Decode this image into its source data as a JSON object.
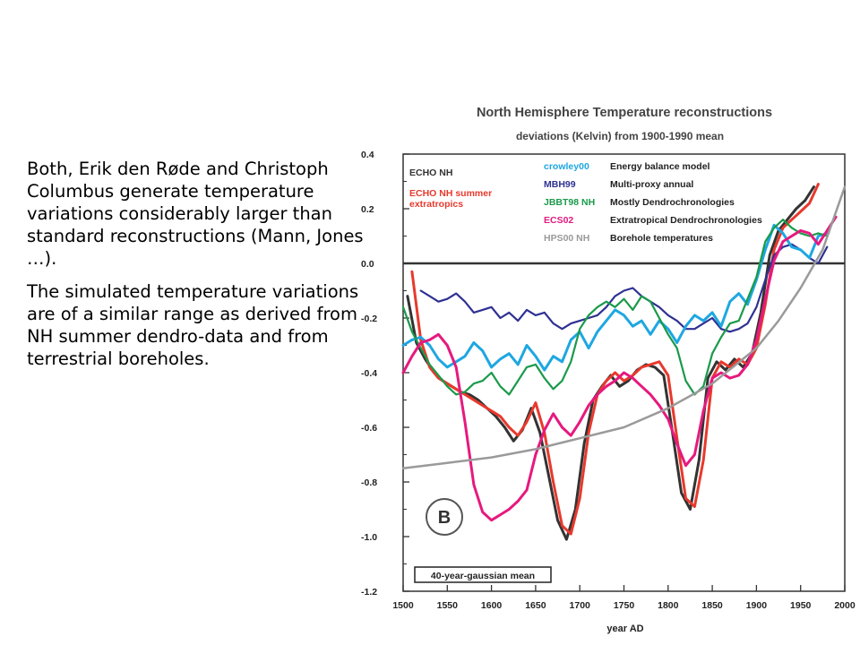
{
  "slide": {
    "paragraph1": "Both, Erik den Røde and Christoph Columbus generate temperature variations considerably larger than standard reconstructions (Mann, Jones …).",
    "paragraph2": "The simulated temperature variations are of a similar range as derived from NH summer dendro-data and from terrestrial boreholes."
  },
  "chart_data": {
    "type": "line",
    "title": "North Hemisphere Temperature reconstructions",
    "subtitle": "deviations (Kelvin)  from 1900-1990 mean",
    "xlabel": "year AD",
    "ylabel": "",
    "xlim": [
      1500,
      2000
    ],
    "ylim": [
      -1.2,
      0.4
    ],
    "x_ticks": [
      "1500",
      "1550",
      "1600",
      "1650",
      "1700",
      "1750",
      "1800",
      "1850",
      "1900",
      "1950",
      "2000"
    ],
    "y_ticks": [
      "0.4",
      "0.2",
      "0.0",
      "-0.2",
      "-0.4",
      "-0.6",
      "-0.8",
      "-1.0",
      "-1.2"
    ],
    "zero_line": true,
    "grid": false,
    "panel_label": "B",
    "smoothing_label": "40-year-gaussian mean",
    "legend_left": [
      {
        "text": "ECHO NH",
        "color": "#333333"
      },
      {
        "text": "ECHO NH summer",
        "color": "#e8392d"
      },
      {
        "text": "extratropics",
        "color": "#e8392d"
      }
    ],
    "legend_right": [
      {
        "name": "crowley00",
        "desc": "Energy balance model",
        "color": "#1ea7e1"
      },
      {
        "name": "MBH99",
        "desc": "Multi-proxy annual",
        "color": "#2e3192"
      },
      {
        "name": "JBBT98 NH",
        "desc": "Mostly Dendrochronologies",
        "color": "#1a9a4a"
      },
      {
        "name": "ECS02",
        "desc": "Extratropical Dendrochronologies",
        "color": "#e6197e"
      },
      {
        "name": "HPS00 NH",
        "desc": "Borehole temperatures",
        "color": "#9a9a9a"
      }
    ],
    "series": [
      {
        "name": "ECHO NH",
        "color": "#333333",
        "width": 3,
        "x": [
          1505,
          1515,
          1525,
          1535,
          1545,
          1555,
          1565,
          1575,
          1585,
          1595,
          1605,
          1615,
          1625,
          1635,
          1645,
          1655,
          1665,
          1675,
          1685,
          1695,
          1705,
          1715,
          1725,
          1735,
          1745,
          1755,
          1765,
          1775,
          1785,
          1795,
          1805,
          1815,
          1825,
          1835,
          1845,
          1855,
          1865,
          1875,
          1885,
          1895,
          1905,
          1915,
          1925,
          1935,
          1945,
          1955,
          1965
        ],
        "y": [
          -0.12,
          -0.29,
          -0.35,
          -0.4,
          -0.43,
          -0.45,
          -0.47,
          -0.48,
          -0.5,
          -0.53,
          -0.56,
          -0.6,
          -0.65,
          -0.61,
          -0.53,
          -0.62,
          -0.78,
          -0.94,
          -1.01,
          -0.9,
          -0.66,
          -0.5,
          -0.45,
          -0.41,
          -0.45,
          -0.43,
          -0.39,
          -0.37,
          -0.38,
          -0.41,
          -0.62,
          -0.84,
          -0.9,
          -0.72,
          -0.42,
          -0.36,
          -0.39,
          -0.35,
          -0.38,
          -0.33,
          -0.18,
          0.03,
          0.12,
          0.16,
          0.2,
          0.23,
          0.28
        ]
      },
      {
        "name": "ECHO NH summer extratropics",
        "color": "#e8392d",
        "width": 3,
        "x": [
          1510,
          1520,
          1530,
          1540,
          1550,
          1560,
          1570,
          1580,
          1590,
          1600,
          1610,
          1620,
          1630,
          1640,
          1650,
          1660,
          1670,
          1680,
          1690,
          1700,
          1710,
          1720,
          1730,
          1740,
          1750,
          1760,
          1770,
          1780,
          1790,
          1800,
          1810,
          1820,
          1830,
          1840,
          1850,
          1860,
          1870,
          1880,
          1890,
          1900,
          1910,
          1920,
          1930,
          1940,
          1950,
          1960,
          1970
        ],
        "y": [
          -0.03,
          -0.28,
          -0.38,
          -0.42,
          -0.44,
          -0.46,
          -0.48,
          -0.5,
          -0.52,
          -0.54,
          -0.56,
          -0.6,
          -0.63,
          -0.58,
          -0.51,
          -0.62,
          -0.8,
          -0.96,
          -0.99,
          -0.86,
          -0.62,
          -0.48,
          -0.43,
          -0.4,
          -0.43,
          -0.41,
          -0.38,
          -0.37,
          -0.36,
          -0.41,
          -0.64,
          -0.86,
          -0.89,
          -0.72,
          -0.42,
          -0.36,
          -0.38,
          -0.35,
          -0.37,
          -0.31,
          -0.15,
          0.05,
          0.13,
          0.16,
          0.19,
          0.22,
          0.29
        ]
      },
      {
        "name": "MBH99",
        "color": "#2e3192",
        "width": 2.2,
        "x": [
          1520,
          1530,
          1540,
          1550,
          1560,
          1570,
          1580,
          1590,
          1600,
          1610,
          1620,
          1630,
          1640,
          1650,
          1660,
          1670,
          1680,
          1690,
          1700,
          1710,
          1720,
          1730,
          1740,
          1750,
          1760,
          1770,
          1780,
          1790,
          1800,
          1810,
          1820,
          1830,
          1840,
          1850,
          1860,
          1870,
          1880,
          1890,
          1900,
          1910,
          1920,
          1930,
          1940,
          1950,
          1960,
          1970,
          1980
        ],
        "y": [
          -0.1,
          -0.12,
          -0.14,
          -0.13,
          -0.11,
          -0.14,
          -0.18,
          -0.17,
          -0.16,
          -0.2,
          -0.18,
          -0.21,
          -0.17,
          -0.19,
          -0.18,
          -0.22,
          -0.24,
          -0.22,
          -0.21,
          -0.2,
          -0.19,
          -0.16,
          -0.12,
          -0.1,
          -0.09,
          -0.12,
          -0.14,
          -0.16,
          -0.19,
          -0.21,
          -0.24,
          -0.24,
          -0.22,
          -0.2,
          -0.24,
          -0.25,
          -0.24,
          -0.22,
          -0.16,
          -0.06,
          0.03,
          0.06,
          0.07,
          0.05,
          0.02,
          0.0,
          0.06
        ]
      },
      {
        "name": "crowley00",
        "color": "#1ea7e1",
        "width": 3,
        "x": [
          1500,
          1510,
          1520,
          1530,
          1540,
          1550,
          1560,
          1570,
          1580,
          1590,
          1600,
          1610,
          1620,
          1630,
          1640,
          1650,
          1660,
          1670,
          1680,
          1690,
          1700,
          1710,
          1720,
          1730,
          1740,
          1750,
          1760,
          1770,
          1780,
          1790,
          1800,
          1810,
          1820,
          1830,
          1840,
          1850,
          1860,
          1870,
          1880,
          1890,
          1900,
          1910,
          1920,
          1930,
          1940,
          1950,
          1960,
          1970,
          1980
        ],
        "y": [
          -0.3,
          -0.28,
          -0.27,
          -0.3,
          -0.35,
          -0.38,
          -0.36,
          -0.34,
          -0.29,
          -0.32,
          -0.38,
          -0.35,
          -0.33,
          -0.37,
          -0.3,
          -0.34,
          -0.39,
          -0.34,
          -0.36,
          -0.28,
          -0.25,
          -0.31,
          -0.25,
          -0.21,
          -0.17,
          -0.19,
          -0.23,
          -0.21,
          -0.26,
          -0.21,
          -0.24,
          -0.29,
          -0.23,
          -0.19,
          -0.21,
          -0.18,
          -0.23,
          -0.14,
          -0.11,
          -0.15,
          -0.06,
          0.05,
          0.14,
          0.11,
          0.06,
          0.05,
          0.02,
          0.1,
          0.11
        ]
      },
      {
        "name": "JBBT98 NH",
        "color": "#1a9a4a",
        "width": 2.2,
        "x": [
          1500,
          1510,
          1520,
          1530,
          1540,
          1550,
          1560,
          1570,
          1580,
          1590,
          1600,
          1610,
          1620,
          1630,
          1640,
          1650,
          1660,
          1670,
          1680,
          1690,
          1700,
          1710,
          1720,
          1730,
          1740,
          1750,
          1760,
          1770,
          1780,
          1790,
          1800,
          1810,
          1820,
          1830,
          1840,
          1850,
          1860,
          1870,
          1880,
          1890,
          1900,
          1910,
          1920,
          1930,
          1940,
          1950,
          1960,
          1970,
          1980
        ],
        "y": [
          -0.16,
          -0.25,
          -0.31,
          -0.37,
          -0.41,
          -0.45,
          -0.48,
          -0.47,
          -0.44,
          -0.43,
          -0.4,
          -0.45,
          -0.48,
          -0.43,
          -0.38,
          -0.37,
          -0.42,
          -0.46,
          -0.43,
          -0.36,
          -0.24,
          -0.19,
          -0.16,
          -0.14,
          -0.16,
          -0.13,
          -0.17,
          -0.12,
          -0.14,
          -0.2,
          -0.26,
          -0.31,
          -0.43,
          -0.48,
          -0.45,
          -0.33,
          -0.27,
          -0.22,
          -0.21,
          -0.13,
          -0.05,
          0.08,
          0.13,
          0.16,
          0.13,
          0.11,
          0.1,
          0.11,
          0.1
        ]
      },
      {
        "name": "ECS02",
        "color": "#e6197e",
        "width": 3,
        "x": [
          1500,
          1510,
          1520,
          1530,
          1540,
          1550,
          1560,
          1570,
          1580,
          1590,
          1600,
          1610,
          1620,
          1630,
          1640,
          1650,
          1660,
          1670,
          1680,
          1690,
          1700,
          1710,
          1720,
          1730,
          1740,
          1750,
          1760,
          1770,
          1780,
          1790,
          1800,
          1810,
          1820,
          1830,
          1840,
          1850,
          1860,
          1870,
          1880,
          1890,
          1900,
          1910,
          1920,
          1930,
          1940,
          1950,
          1960,
          1970,
          1980,
          1990
        ],
        "y": [
          -0.4,
          -0.34,
          -0.29,
          -0.28,
          -0.26,
          -0.3,
          -0.38,
          -0.58,
          -0.81,
          -0.91,
          -0.94,
          -0.92,
          -0.9,
          -0.87,
          -0.83,
          -0.7,
          -0.61,
          -0.55,
          -0.6,
          -0.63,
          -0.58,
          -0.52,
          -0.48,
          -0.45,
          -0.43,
          -0.4,
          -0.42,
          -0.45,
          -0.48,
          -0.52,
          -0.57,
          -0.66,
          -0.74,
          -0.7,
          -0.54,
          -0.42,
          -0.4,
          -0.42,
          -0.41,
          -0.37,
          -0.28,
          -0.13,
          0.01,
          0.08,
          0.1,
          0.12,
          0.11,
          0.07,
          0.12,
          0.17
        ]
      },
      {
        "name": "HPS00 NH",
        "color": "#9a9a9a",
        "width": 2.5,
        "x": [
          1500,
          1550,
          1600,
          1650,
          1700,
          1750,
          1800,
          1850,
          1900,
          1925,
          1950,
          1975,
          2000
        ],
        "y": [
          -0.75,
          -0.73,
          -0.71,
          -0.68,
          -0.64,
          -0.6,
          -0.53,
          -0.44,
          -0.31,
          -0.21,
          -0.09,
          0.05,
          0.28
        ]
      }
    ]
  }
}
